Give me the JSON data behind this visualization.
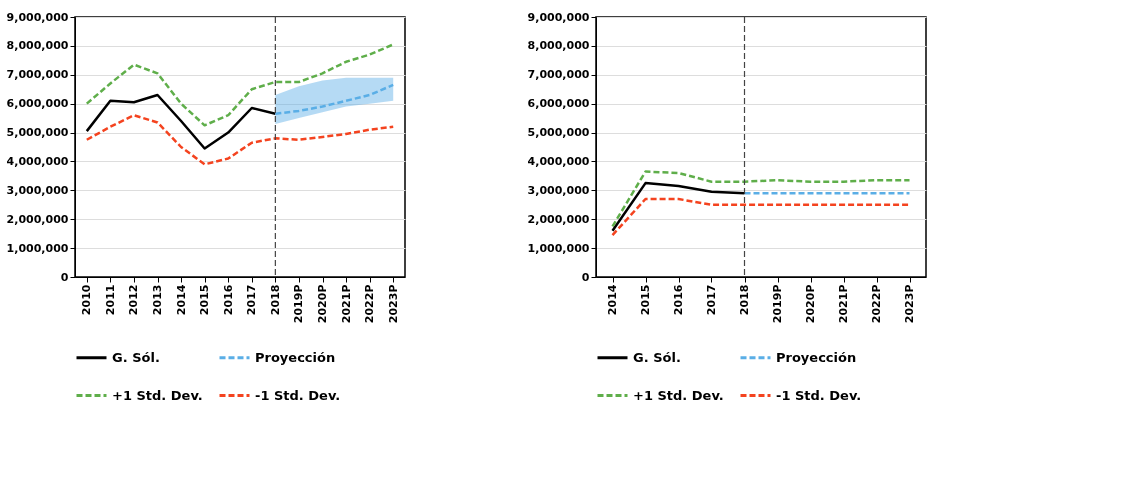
{
  "chart_data": [
    {
      "type": "line",
      "categories": [
        "2010",
        "2011",
        "2012",
        "2013",
        "2014",
        "2015",
        "2016",
        "2017",
        "2018",
        "2019P",
        "2020P",
        "2021P",
        "2022P",
        "2023P"
      ],
      "ylim": [
        0,
        9000000
      ],
      "yticks": [
        0,
        {
          "value": 1000000,
          "label": "1,000,000"
        },
        {
          "value": 2000000,
          "label": "2,000,000"
        },
        {
          "value": 3000000,
          "label": "3,000,000"
        },
        {
          "value": 4000000,
          "label": "4,000,000"
        },
        {
          "value": 5000000,
          "label": "5,000,000"
        },
        {
          "value": 6000000,
          "label": "6,000,000"
        },
        {
          "value": 7000000,
          "label": "7,000,000"
        },
        {
          "value": 8000000,
          "label": "8,000,000"
        },
        {
          "value": 9000000,
          "label": "9,000,000"
        }
      ],
      "grid": "y",
      "legend": "bottom",
      "ref_lines": [
        {
          "axis": "x",
          "value": "2018",
          "color": "#444444",
          "line_style": "dashed"
        }
      ],
      "series": [
        {
          "name": "G. Sól.",
          "color": "#000000",
          "line_style": "solid",
          "values": [
            5050000,
            6100000,
            6050000,
            6300000,
            5400000,
            4450000,
            5000000,
            5850000,
            5650000,
            null,
            null,
            null,
            null,
            null
          ]
        },
        {
          "name": "Proyección",
          "color": "#5aaee6",
          "line_style": "dashed",
          "values": [
            null,
            null,
            null,
            null,
            null,
            null,
            null,
            null,
            5650000,
            5750000,
            5900000,
            6100000,
            6300000,
            6650000
          ],
          "lower": [
            null,
            null,
            null,
            null,
            null,
            null,
            null,
            null,
            5300000,
            5500000,
            5700000,
            5900000,
            6000000,
            6100000
          ],
          "upper": [
            null,
            null,
            null,
            null,
            null,
            null,
            null,
            null,
            6300000,
            6600000,
            6800000,
            6900000,
            6900000,
            6900000
          ]
        },
        {
          "name": "+1 Std. Dev.",
          "color": "#5fae4a",
          "line_style": "dashed",
          "values": [
            6000000,
            6700000,
            7350000,
            7050000,
            6000000,
            5250000,
            5600000,
            6500000,
            6750000,
            6750000,
            7050000,
            7450000,
            7700000,
            8050000
          ]
        },
        {
          "name": "-1 Std. Dev.",
          "color": "#f4431f",
          "line_style": "dashed",
          "values": [
            4750000,
            5200000,
            5600000,
            5350000,
            4500000,
            3900000,
            4100000,
            4650000,
            4800000,
            4750000,
            4850000,
            4950000,
            5100000,
            5200000
          ]
        }
      ]
    },
    {
      "type": "line",
      "categories": [
        "2014",
        "2015",
        "2016",
        "2017",
        "2018",
        "2019P",
        "2020P",
        "2021P",
        "2022P",
        "2023P"
      ],
      "ylim": [
        0,
        9000000
      ],
      "yticks": [
        0,
        {
          "value": 1000000,
          "label": "1,000,000"
        },
        {
          "value": 2000000,
          "label": "2,000,000"
        },
        {
          "value": 3000000,
          "label": "3,000,000"
        },
        {
          "value": 4000000,
          "label": "4,000,000"
        },
        {
          "value": 5000000,
          "label": "5,000,000"
        },
        {
          "value": 6000000,
          "label": "6,000,000"
        },
        {
          "value": 7000000,
          "label": "7,000,000"
        },
        {
          "value": 8000000,
          "label": "8,000,000"
        },
        {
          "value": 9000000,
          "label": "9,000,000"
        }
      ],
      "grid": "y",
      "legend": "bottom",
      "ref_lines": [
        {
          "axis": "x",
          "value": "2018",
          "color": "#444444",
          "line_style": "dashed"
        }
      ],
      "series": [
        {
          "name": "G. Sól.",
          "color": "#000000",
          "line_style": "solid",
          "values": [
            1600000,
            3250000,
            3150000,
            2950000,
            2900000,
            null,
            null,
            null,
            null,
            null
          ]
        },
        {
          "name": "Proyección",
          "color": "#5aaee6",
          "line_style": "dashed",
          "values": [
            null,
            null,
            null,
            null,
            2900000,
            2900000,
            2900000,
            2900000,
            2900000,
            2900000
          ]
        },
        {
          "name": "+1 Std. Dev.",
          "color": "#5fae4a",
          "line_style": "dashed",
          "values": [
            1750000,
            3650000,
            3600000,
            3300000,
            3300000,
            3350000,
            3300000,
            3300000,
            3350000,
            3350000
          ]
        },
        {
          "name": "-1 Std. Dev.",
          "color": "#f4431f",
          "line_style": "dashed",
          "values": [
            1450000,
            2700000,
            2700000,
            2500000,
            2500000,
            2500000,
            2500000,
            2500000,
            2500000,
            2500000
          ]
        }
      ]
    }
  ]
}
